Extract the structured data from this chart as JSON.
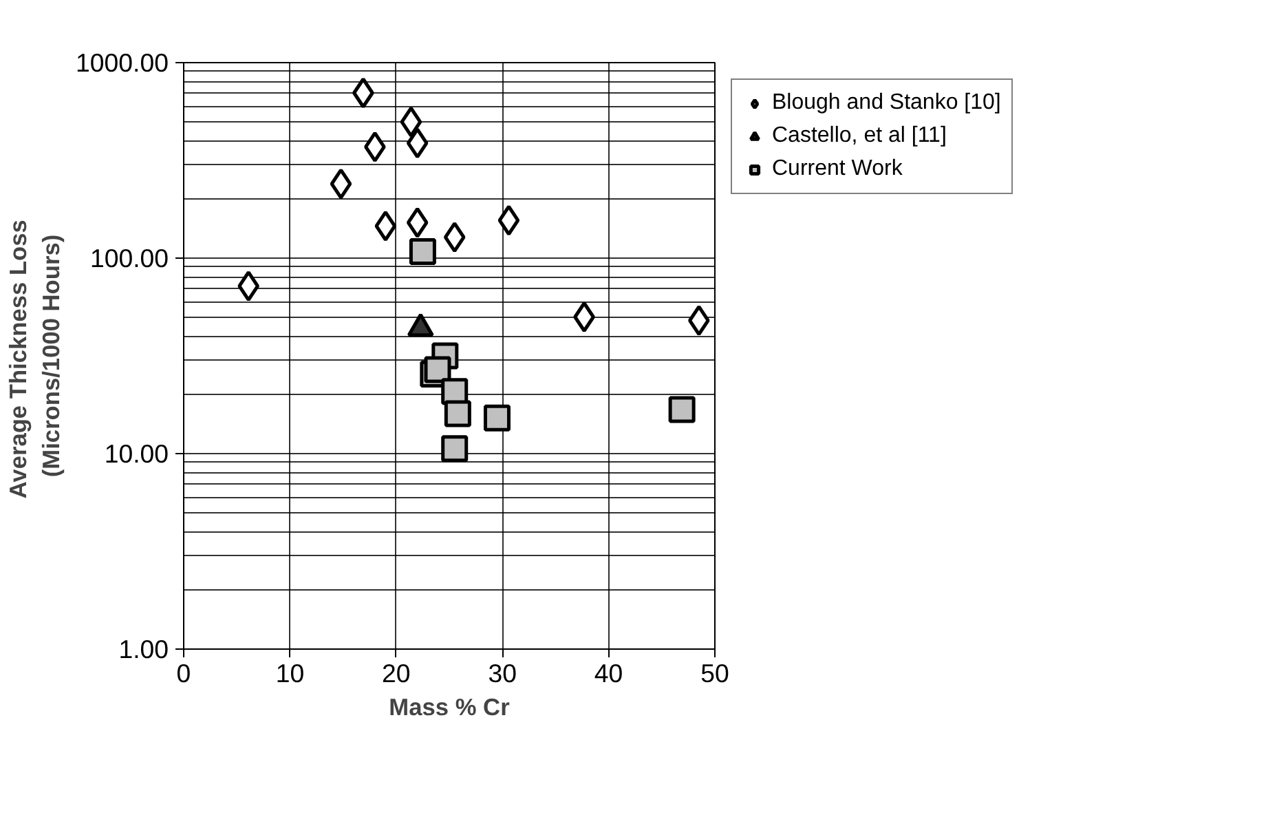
{
  "chart_data": {
    "type": "scatter",
    "xlabel": "Mass % Cr",
    "ylabel": "Average  Thickness Loss\n(Microns/1000 Hours)",
    "log": "y",
    "grid": true,
    "legend": "right",
    "xlim": [
      0,
      50
    ],
    "xticks": [
      0,
      10,
      20,
      30,
      40,
      50
    ],
    "ylim": [
      1,
      1000
    ],
    "yticks": [
      {
        "value": 1,
        "label": "1.00"
      },
      {
        "value": 10,
        "label": "10.00"
      },
      {
        "value": 100,
        "label": "100.00"
      },
      {
        "value": 1000,
        "label": "1000.00"
      }
    ],
    "series": [
      {
        "name": "Blough and Stanko [10]",
        "color": "#ffffff",
        "marker": "diamond",
        "x": [
          6.1,
          16.9,
          21.4,
          18.0,
          22.0,
          14.8,
          19.0,
          22.0,
          25.5,
          30.6,
          37.7,
          48.5
        ],
        "values": [
          72,
          700,
          497,
          371,
          388,
          240,
          146,
          152,
          128,
          156,
          50,
          48
        ]
      },
      {
        "name": "Castello, et al [11]",
        "color": "#333333",
        "marker": "triangle",
        "x": [
          22.3
        ],
        "values": [
          43.8
        ]
      },
      {
        "name": "Current Work",
        "color": "#c0c0c0",
        "marker": "square",
        "x": [
          22.5,
          24.6,
          23.5,
          23.9,
          25.5,
          25.8,
          29.5,
          25.5,
          46.9
        ],
        "values": [
          108,
          31.6,
          25.5,
          26.9,
          20.8,
          16.0,
          15.2,
          10.6,
          16.8
        ]
      }
    ]
  }
}
